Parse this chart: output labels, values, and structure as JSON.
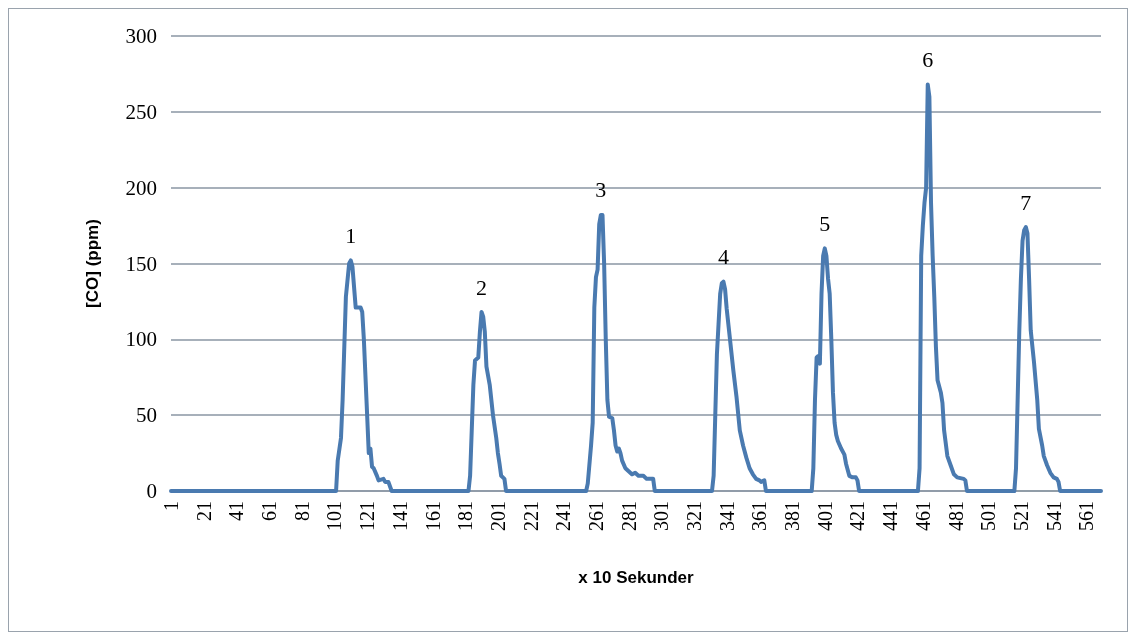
{
  "chart_data": {
    "type": "line",
    "xlabel": "x 10 Sekunder",
    "ylabel": "[CO] (ppm)",
    "xlim": [
      1,
      570
    ],
    "xticks": [
      1,
      21,
      41,
      61,
      81,
      101,
      121,
      141,
      161,
      181,
      201,
      221,
      241,
      261,
      281,
      301,
      321,
      341,
      361,
      381,
      401,
      421,
      441,
      461,
      481,
      501,
      521,
      541,
      561
    ],
    "ylim": [
      0,
      300
    ],
    "yticks": [
      0,
      50,
      100,
      150,
      200,
      250,
      300
    ],
    "grid": "y",
    "marker": "none",
    "line_style": "solid",
    "series": [
      {
        "color": "#4a7ab0",
        "x": [
          1,
          102,
          103,
          105,
          106,
          108,
          110,
          111,
          112,
          114,
          117,
          118,
          119,
          121,
          122,
          123,
          124,
          125,
          127,
          128,
          131,
          132,
          134,
          136,
          183,
          184,
          185,
          186,
          187,
          189,
          190,
          191,
          192,
          193,
          194,
          196,
          198,
          200,
          201,
          202,
          203,
          205,
          206,
          255,
          256,
          258,
          259,
          260,
          261,
          262,
          263,
          264,
          265,
          266,
          267,
          268,
          269,
          271,
          272,
          273,
          274,
          275,
          276,
          277,
          279,
          281,
          283,
          285,
          287,
          290,
          292,
          296,
          297,
          332,
          333,
          334,
          335,
          336,
          337,
          338,
          339,
          340,
          341,
          343,
          345,
          347,
          349,
          351,
          353,
          355,
          357,
          359,
          361,
          362,
          364,
          365,
          393,
          394,
          395,
          396,
          397,
          398,
          399,
          400,
          401,
          402,
          403,
          404,
          405,
          406,
          407,
          408,
          409,
          411,
          413,
          414,
          416,
          418,
          420,
          421,
          422,
          458,
          459,
          460,
          461,
          462,
          463,
          464,
          465,
          466,
          467,
          468,
          469,
          470,
          472,
          473,
          474,
          476,
          478,
          480,
          482,
          486,
          487,
          488,
          517,
          518,
          519,
          520,
          521,
          522,
          523,
          524,
          525,
          526,
          527,
          529,
          531,
          532,
          534,
          535,
          537,
          539,
          541,
          543,
          544,
          545,
          570
        ],
        "values": [
          0,
          0,
          20,
          35,
          60,
          128,
          150,
          152,
          148,
          121,
          121,
          118,
          100,
          50,
          25,
          28,
          16,
          15,
          10,
          7,
          8,
          6,
          6,
          0,
          0,
          10,
          40,
          70,
          86,
          88,
          105,
          118,
          115,
          105,
          82,
          70,
          50,
          35,
          25,
          18,
          10,
          8,
          0,
          0,
          5,
          30,
          45,
          121,
          141,
          146,
          176,
          182,
          182,
          150,
          100,
          60,
          49,
          48,
          40,
          30,
          26,
          28,
          25,
          20,
          15,
          13,
          11,
          12,
          10,
          10,
          8,
          8,
          0,
          0,
          10,
          50,
          90,
          110,
          130,
          137,
          138,
          133,
          120,
          100,
          80,
          62,
          40,
          30,
          22,
          15,
          11,
          8,
          7,
          6,
          7,
          0,
          0,
          15,
          60,
          88,
          89,
          84,
          130,
          155,
          160,
          155,
          140,
          130,
          100,
          65,
          45,
          37,
          33,
          28,
          24,
          18,
          10,
          9,
          9,
          7,
          0,
          0,
          15,
          155,
          175,
          190,
          200,
          268,
          260,
          190,
          155,
          128,
          95,
          73,
          65,
          58,
          40,
          23,
          17,
          11,
          9,
          8,
          7,
          0,
          0,
          15,
          60,
          105,
          140,
          165,
          172,
          174,
          170,
          140,
          106,
          85,
          60,
          41,
          30,
          23,
          17,
          12,
          9,
          8,
          6,
          0,
          0
        ]
      }
    ],
    "annotations": [
      {
        "text": "1",
        "x": 111,
        "y": 152
      },
      {
        "text": "2",
        "x": 191,
        "y": 118
      },
      {
        "text": "3",
        "x": 264,
        "y": 182
      },
      {
        "text": "4",
        "x": 339,
        "y": 138
      },
      {
        "text": "5",
        "x": 401,
        "y": 160
      },
      {
        "text": "6",
        "x": 464,
        "y": 268
      },
      {
        "text": "7",
        "x": 524,
        "y": 174
      }
    ]
  }
}
